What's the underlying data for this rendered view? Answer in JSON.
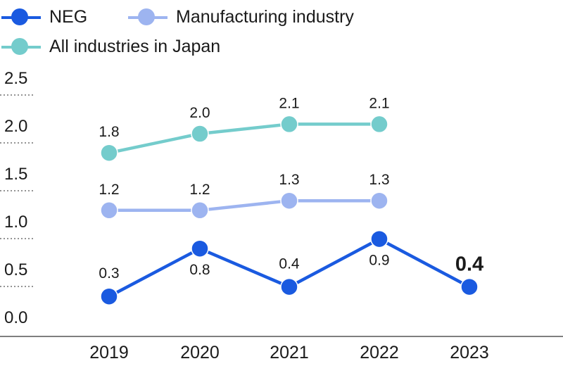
{
  "chart_data": {
    "type": "line",
    "title": "",
    "xlabel": "",
    "ylabel": "",
    "x": [
      "2019",
      "2020",
      "2021",
      "2022",
      "2023"
    ],
    "ylim": [
      0,
      2.5
    ],
    "yticks": [
      "0.0",
      "0.5",
      "1.0",
      "1.5",
      "2.0",
      "2.5"
    ],
    "grid": "dotted-left",
    "legend_position": "top-left",
    "series": [
      {
        "name": "NEG",
        "color": "#1a5ae0",
        "values": [
          0.3,
          0.8,
          0.4,
          0.9,
          0.4
        ],
        "labels": [
          "0.3",
          "0.8",
          "0.4",
          "0.9",
          "0.4"
        ]
      },
      {
        "name": "Manufacturing industry",
        "color": "#9db4f0",
        "values": [
          1.2,
          1.2,
          1.3,
          1.3,
          null
        ],
        "labels": [
          "1.2",
          "1.2",
          "1.3",
          "1.3",
          null
        ]
      },
      {
        "name": "All industries in Japan",
        "color": "#74cccc",
        "values": [
          1.8,
          2.0,
          2.1,
          2.1,
          null
        ],
        "labels": [
          "1.8",
          "2.0",
          "2.1",
          "2.1",
          null
        ]
      }
    ]
  }
}
